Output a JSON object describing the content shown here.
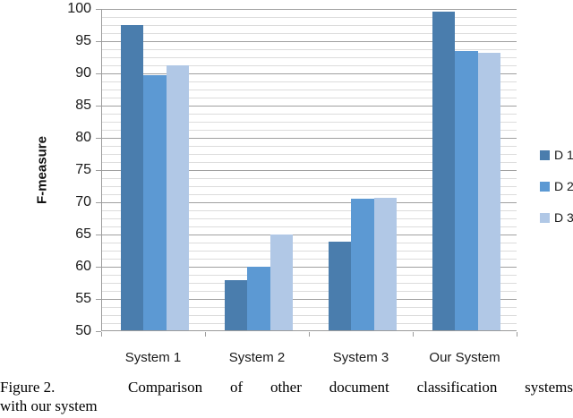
{
  "chart_data": {
    "type": "bar",
    "title": "",
    "xlabel": "",
    "ylabel": "F-measure",
    "categories": [
      "System 1",
      "System 2",
      "System 3",
      "Our System"
    ],
    "series": [
      {
        "name": "D 1",
        "color": "#4A7DAD",
        "values": [
          97.3,
          57.8,
          63.7,
          99.4
        ]
      },
      {
        "name": "D 2",
        "color": "#5C99D3",
        "values": [
          89.6,
          59.9,
          70.4,
          93.3
        ]
      },
      {
        "name": "D 3",
        "color": "#B1C8E6",
        "values": [
          91.1,
          64.8,
          70.6,
          93.1
        ]
      }
    ],
    "ylim": [
      50,
      100
    ],
    "yticks": [
      50,
      55,
      60,
      65,
      70,
      75,
      80,
      85,
      90,
      95,
      100
    ],
    "minor_step": 1.25,
    "grid": "horizontal",
    "legend_position": "right"
  },
  "colors": {
    "minor_grid": "#dcdcdc",
    "major_grid": "#a0a0a0",
    "axis": "#9c9c9c"
  },
  "caption": {
    "figure_label": "Figure 2.",
    "text": "Comparison of other document classification systems",
    "text_line2": "with our system"
  }
}
